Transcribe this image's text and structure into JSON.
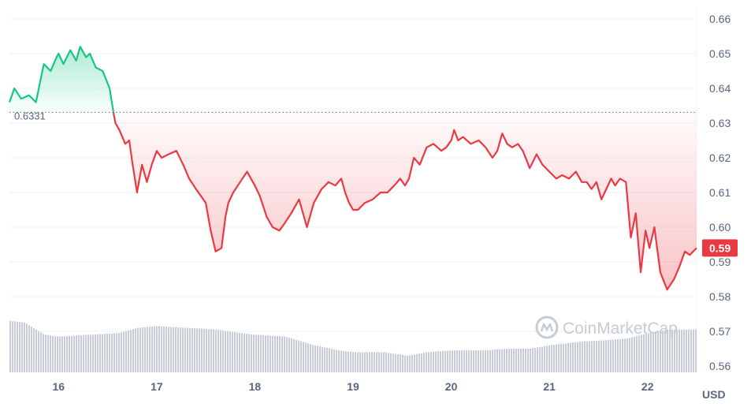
{
  "colors": {
    "up": "#16c784",
    "down": "#ea3943",
    "volume": "#c8ccd8",
    "grid": "#eff2f5",
    "text": "#58667e",
    "watermark": "#c5ccd6"
  },
  "watermark": {
    "text": "CoinMarketCap",
    "icon": "coinmarketcap-logo-icon"
  },
  "chart_data": {
    "type": "line",
    "unit": "USD",
    "reference_price": 0.6331,
    "reference_label": "0.6331",
    "current_price_label": "0.59",
    "ylim": [
      0.56,
      0.66
    ],
    "y_ticks": [
      "0.66",
      "0.65",
      "0.64",
      "0.63",
      "0.62",
      "0.61",
      "0.60",
      "0.59",
      "0.58",
      "0.57",
      "0.56"
    ],
    "y_tick_values": [
      0.66,
      0.65,
      0.64,
      0.63,
      0.62,
      0.61,
      0.6,
      0.59,
      0.58,
      0.57,
      0.56
    ],
    "xlim": [
      15.5,
      22.5
    ],
    "x_ticks": [
      "16",
      "17",
      "18",
      "19",
      "20",
      "21",
      "22"
    ],
    "x_tick_values": [
      16,
      17,
      18,
      19,
      20,
      21,
      22
    ],
    "grid": true,
    "series": [
      {
        "kind": "price",
        "x": [
          15.5,
          15.55,
          15.62,
          15.7,
          15.77,
          15.85,
          15.92,
          15.98,
          16.0,
          16.05,
          16.12,
          16.18,
          16.22,
          16.28,
          16.32,
          16.38,
          16.45,
          16.52,
          16.56,
          16.58,
          16.62,
          16.68,
          16.72,
          16.75,
          16.8,
          16.85,
          16.9,
          16.95,
          17.0,
          17.05,
          17.12,
          17.2,
          17.27,
          17.33,
          17.4,
          17.5,
          17.55,
          17.6,
          17.66,
          17.7,
          17.73,
          17.78,
          17.85,
          17.92,
          18.0,
          18.05,
          18.12,
          18.18,
          18.25,
          18.3,
          18.37,
          18.45,
          18.53,
          18.6,
          18.68,
          18.75,
          18.82,
          18.88,
          18.92,
          18.96,
          19.0,
          19.05,
          19.12,
          19.2,
          19.28,
          19.35,
          19.42,
          19.48,
          19.53,
          19.57,
          19.62,
          19.68,
          19.75,
          19.82,
          19.9,
          19.95,
          20.0,
          20.03,
          20.07,
          20.12,
          20.2,
          20.28,
          20.35,
          20.42,
          20.47,
          20.52,
          20.57,
          20.62,
          20.68,
          20.73,
          20.8,
          20.87,
          20.93,
          21.0,
          21.07,
          21.13,
          21.2,
          21.27,
          21.33,
          21.38,
          21.43,
          21.48,
          21.53,
          21.58,
          21.63,
          21.67,
          21.72,
          21.78,
          21.83,
          21.88,
          21.93,
          21.98,
          22.02,
          22.07,
          22.13,
          22.2,
          22.27,
          22.33,
          22.38,
          22.43,
          22.5
        ],
        "y": [
          0.636,
          0.64,
          0.637,
          0.638,
          0.636,
          0.647,
          0.645,
          0.649,
          0.65,
          0.647,
          0.651,
          0.648,
          0.652,
          0.649,
          0.65,
          0.646,
          0.645,
          0.64,
          0.633,
          0.63,
          0.628,
          0.624,
          0.625,
          0.619,
          0.61,
          0.618,
          0.613,
          0.618,
          0.622,
          0.62,
          0.621,
          0.622,
          0.618,
          0.614,
          0.611,
          0.607,
          0.599,
          0.593,
          0.594,
          0.603,
          0.607,
          0.61,
          0.613,
          0.616,
          0.612,
          0.609,
          0.603,
          0.6,
          0.599,
          0.601,
          0.604,
          0.608,
          0.6,
          0.607,
          0.611,
          0.613,
          0.612,
          0.614,
          0.61,
          0.607,
          0.605,
          0.605,
          0.607,
          0.608,
          0.61,
          0.61,
          0.612,
          0.614,
          0.612,
          0.614,
          0.62,
          0.618,
          0.623,
          0.624,
          0.622,
          0.623,
          0.625,
          0.628,
          0.625,
          0.626,
          0.624,
          0.625,
          0.623,
          0.62,
          0.622,
          0.627,
          0.624,
          0.623,
          0.624,
          0.622,
          0.617,
          0.621,
          0.618,
          0.616,
          0.614,
          0.615,
          0.614,
          0.616,
          0.613,
          0.613,
          0.611,
          0.613,
          0.608,
          0.611,
          0.614,
          0.612,
          0.614,
          0.613,
          0.597,
          0.604,
          0.587,
          0.599,
          0.594,
          0.6,
          0.587,
          0.582,
          0.585,
          0.589,
          0.593,
          0.592,
          0.594
        ]
      },
      {
        "kind": "volume",
        "x": [
          15.5,
          15.65,
          15.85,
          16.0,
          16.3,
          16.6,
          16.8,
          17.0,
          17.3,
          17.6,
          17.85,
          18.0,
          18.3,
          18.6,
          18.85,
          19.0,
          19.3,
          19.55,
          19.75,
          20.0,
          20.3,
          20.6,
          20.8,
          21.0,
          21.3,
          21.6,
          21.8,
          22.0,
          22.2,
          22.5
        ],
        "y": [
          0.573,
          0.5725,
          0.569,
          0.5685,
          0.569,
          0.5695,
          0.571,
          0.5715,
          0.571,
          0.5705,
          0.5695,
          0.569,
          0.5685,
          0.566,
          0.5645,
          0.564,
          0.564,
          0.563,
          0.564,
          0.5645,
          0.5645,
          0.565,
          0.565,
          0.566,
          0.567,
          0.5675,
          0.568,
          0.5695,
          0.5705,
          0.5705
        ]
      }
    ]
  }
}
